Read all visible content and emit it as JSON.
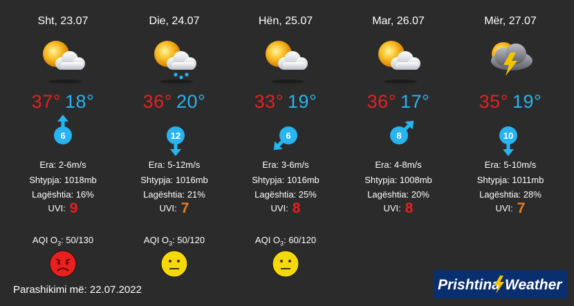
{
  "days": [
    {
      "date": "Sht, 23.07",
      "icon": "sun-cloud-icon",
      "hi": "37°",
      "lo": "18°",
      "wind_speed": "6",
      "wind_dir": "south",
      "era_label": "Era:",
      "era": "2-6m/s",
      "shtypja_label": "Shtypja:",
      "shtypja": "1018mb",
      "lageshtia_label": "Lagështia:",
      "lageshtia": "16%",
      "uvi_label": "UVI:",
      "uvi": "9",
      "uvi_color": "#e8201f"
    },
    {
      "date": "Die, 24.07",
      "icon": "sun-cloud-rain-icon",
      "hi": "36°",
      "lo": "20°",
      "wind_speed": "12",
      "wind_dir": "north",
      "era_label": "Era:",
      "era": "5-12m/s",
      "shtypja_label": "Shtypja:",
      "shtypja": "1016mb",
      "lageshtia_label": "Lagështia:",
      "lageshtia": "21%",
      "uvi_label": "UVI:",
      "uvi": "7",
      "uvi_color": "#f07d1c"
    },
    {
      "date": "Hën, 25.07",
      "icon": "sun-cloud-icon",
      "hi": "33°",
      "lo": "19°",
      "wind_speed": "6",
      "wind_dir": "northeast",
      "era_label": "Era:",
      "era": "3-6m/s",
      "shtypja_label": "Shtypja:",
      "shtypja": "1016mb",
      "lageshtia_label": "Lagështia:",
      "lageshtia": "25%",
      "uvi_label": "UVI:",
      "uvi": "8",
      "uvi_color": "#e8201f"
    },
    {
      "date": "Mar, 26.07",
      "icon": "sun-cloud-icon",
      "hi": "36°",
      "lo": "17°",
      "wind_speed": "8",
      "wind_dir": "southwest",
      "era_label": "Era:",
      "era": "4-8m/s",
      "shtypja_label": "Shtypja:",
      "shtypja": "1008mb",
      "lageshtia_label": "Lagështia:",
      "lageshtia": "20%",
      "uvi_label": "UVI:",
      "uvi": "8",
      "uvi_color": "#e8201f"
    },
    {
      "date": "Mër, 27.07",
      "icon": "thunderstorm-icon",
      "hi": "35°",
      "lo": "19°",
      "wind_speed": "10",
      "wind_dir": "north",
      "era_label": "Era:",
      "era": "5-10m/s",
      "shtypja_label": "Shtypja:",
      "shtypja": "1011mb",
      "lageshtia_label": "Lagështia:",
      "lageshtia": "28%",
      "uvi_label": "UVI:",
      "uvi": "7",
      "uvi_color": "#f07d1c"
    }
  ],
  "aqi": [
    {
      "label": "AQI O",
      "sub": "3",
      "value": ": 50/130",
      "face": "angry-face-icon",
      "face_color": "#e8201f"
    },
    {
      "label": "AQI O",
      "sub": "3",
      "value": ": 50/120",
      "face": "neutral-face-icon",
      "face_color": "#f5d90a"
    },
    {
      "label": "AQI O",
      "sub": "3",
      "value": ": 60/120",
      "face": "neutral-face-icon",
      "face_color": "#f5d90a"
    }
  ],
  "footer": "Parashikimi më: 22.07.2022",
  "logo": {
    "part1": "Prishtina",
    "part2": "Weather"
  },
  "colors": {
    "background": "#2b2b2b",
    "hi": "#e8201f",
    "lo": "#27b4f0",
    "wind": "#27b4f0",
    "logo_bg": "#0a2f6e"
  }
}
